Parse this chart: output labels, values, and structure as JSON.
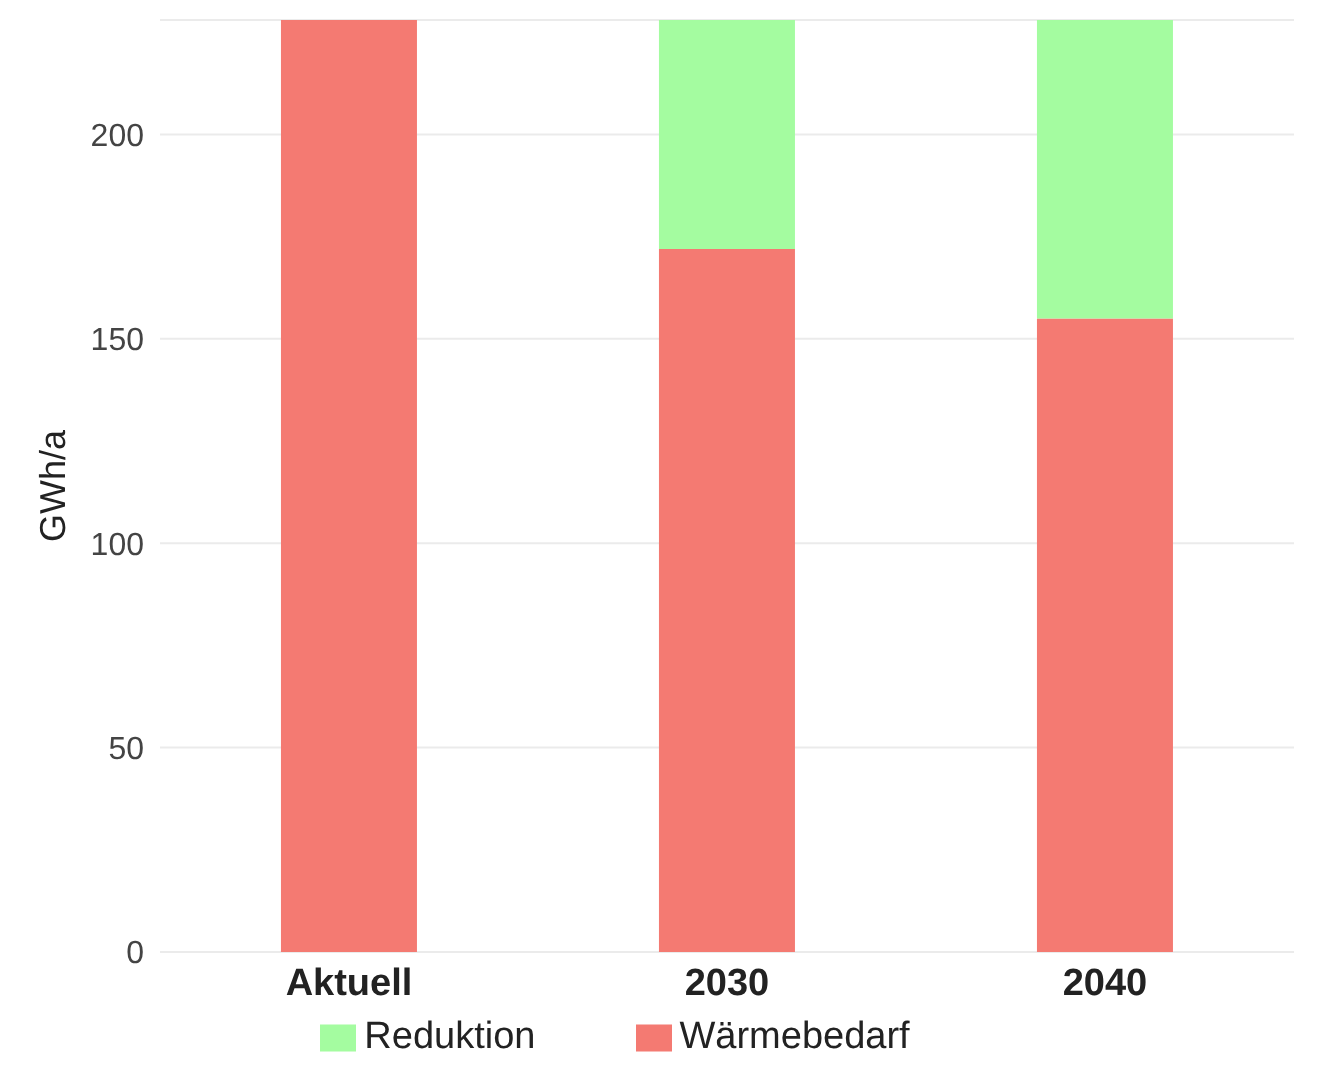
{
  "chart_data": {
    "type": "bar",
    "ylabel": "GWh/a",
    "categories": [
      "Aktuell",
      "2030",
      "2040"
    ],
    "series": [
      {
        "name": "Wärmebedarf",
        "color": "#f47a72",
        "values": [
          228,
          172,
          155
        ]
      },
      {
        "name": "Reduktion",
        "color": "#a4fca0",
        "values": [
          0,
          56,
          73
        ]
      }
    ],
    "stacked": true,
    "ylim": [
      0,
      228
    ],
    "yticks": [
      0,
      50,
      100,
      150,
      200
    ],
    "grid": "y",
    "legend": "bottom"
  }
}
